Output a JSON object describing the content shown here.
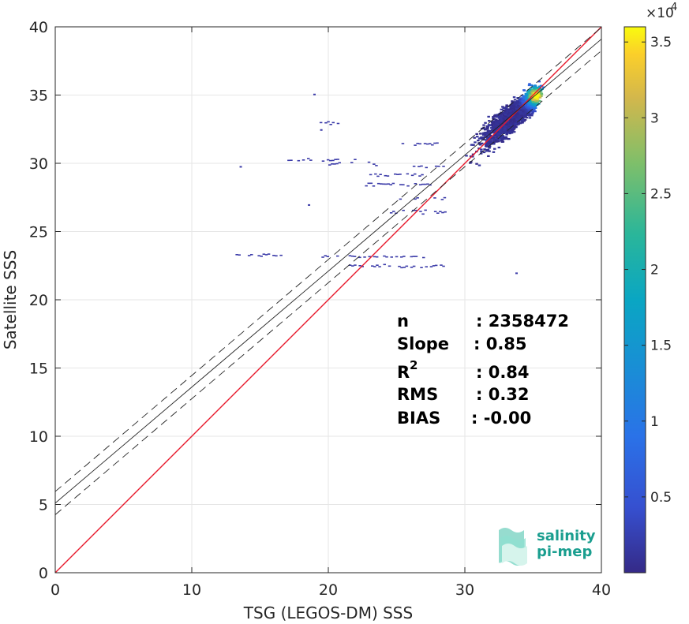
{
  "chart_data": {
    "type": "heatmap",
    "title": "",
    "xlabel": "TSG (LEGOS-DM) SSS",
    "ylabel": "Satellite SSS",
    "xlim": [
      0,
      40
    ],
    "ylim": [
      0,
      40
    ],
    "xticks": [
      "0",
      "10",
      "20",
      "30",
      "40"
    ],
    "yticks": [
      "0",
      "5",
      "10",
      "15",
      "20",
      "25",
      "30",
      "35",
      "40"
    ],
    "grid": true,
    "colorbar": {
      "range": [
        0,
        3.6
      ],
      "ticks": [
        "0.5",
        "1",
        "1.5",
        "2",
        "2.5",
        "3",
        "3.5"
      ],
      "exponent_label": "×10",
      "exponent_power": "4"
    },
    "lines": {
      "identity": {
        "slope": 1,
        "intercept": 0,
        "color": "#e8192c"
      },
      "fit": {
        "slope": 0.85,
        "intercept": 5.1,
        "color": "#222222"
      },
      "fit_band": {
        "offset": 0.85,
        "color": "#222222",
        "dash": true
      }
    },
    "stats": {
      "n_label": "n",
      "n_value": ": 2358472",
      "slope_label": "Slope",
      "slope_value": ": 0.85",
      "r2_label": "R",
      "r2_sup": "2",
      "r2_value": ": 0.84",
      "rms_label": "RMS",
      "rms_value": ": 0.32",
      "bias_label": "BIAS",
      "bias_value": ": -0.00"
    }
  },
  "logo": {
    "line1": "salinity",
    "line2": "pi-mep"
  }
}
